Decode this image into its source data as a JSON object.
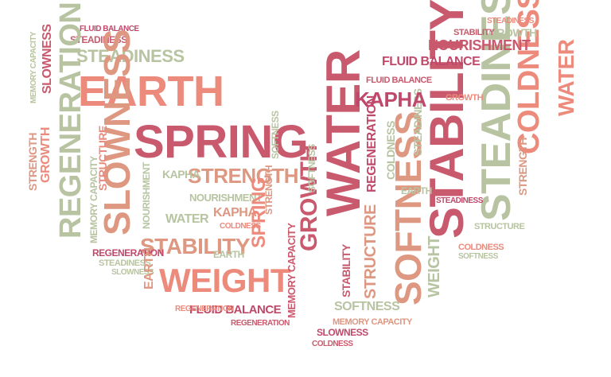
{
  "words": {
    "earth": "EARTH",
    "spring": "SPRING",
    "weight": "WEIGHT",
    "stability": "STABILITY",
    "water": "WATER",
    "steadiness": "STEADINESS",
    "coldness": "COLDNESS",
    "slowness": "SLOWNESS",
    "regeneration": "REGENERATION",
    "growth": "GROWTH",
    "strength": "STRENGTH",
    "softness": "SOFTNESS",
    "structure": "STRUCTURE",
    "kapha": "KAPHA",
    "nourishment": "NOURISHMENT",
    "fluid_balance": "FLUID BALANCE",
    "memory_capacity": "MEMORY CAPACITY"
  },
  "palette": {
    "rose": "#c9596d",
    "salmon": "#ec8a7c",
    "sage": "#b8c4a1",
    "peach": "#de9780",
    "deep_pink": "#c0486a"
  }
}
